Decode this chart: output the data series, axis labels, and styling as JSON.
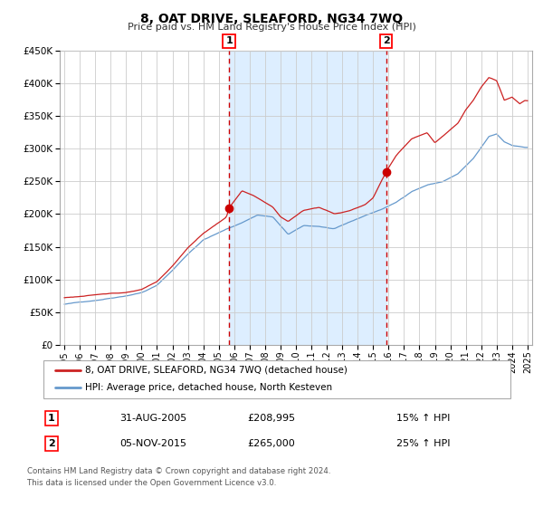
{
  "title": "8, OAT DRIVE, SLEAFORD, NG34 7WQ",
  "subtitle": "Price paid vs. HM Land Registry's House Price Index (HPI)",
  "legend_line1": "8, OAT DRIVE, SLEAFORD, NG34 7WQ (detached house)",
  "legend_line2": "HPI: Average price, detached house, North Kesteven",
  "transaction1_date": "31-AUG-2005",
  "transaction1_price": 208995,
  "transaction1_hpi": "15% ↑ HPI",
  "transaction2_date": "05-NOV-2015",
  "transaction2_price": 265000,
  "transaction2_hpi": "25% ↑ HPI",
  "transaction1_year": 2005.67,
  "transaction2_year": 2015.84,
  "hpi_color": "#6699cc",
  "price_color": "#cc2222",
  "marker_color": "#cc0000",
  "shade_color": "#ddeeff",
  "vline_color": "#cc0000",
  "background_color": "#ffffff",
  "grid_color": "#cccccc",
  "ylim_min": 0,
  "ylim_max": 450000,
  "footnote_line1": "Contains HM Land Registry data © Crown copyright and database right 2024.",
  "footnote_line2": "This data is licensed under the Open Government Licence v3.0."
}
